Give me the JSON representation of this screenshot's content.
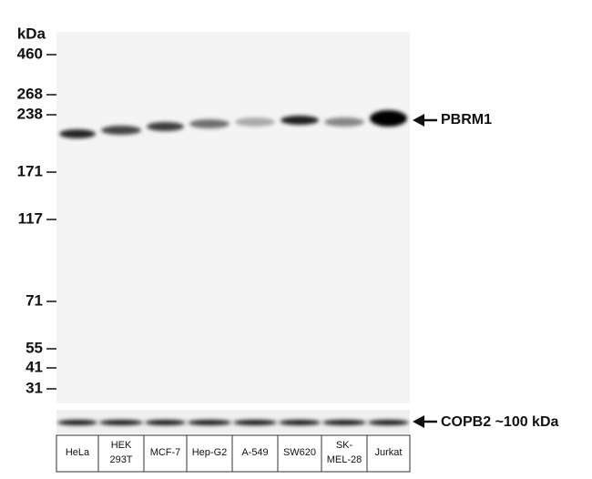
{
  "ladder": {
    "unit": "kDa",
    "markers": [
      "460",
      "268",
      "238",
      "171",
      "117",
      "71",
      "55",
      "41",
      "31"
    ]
  },
  "lanes": [
    [
      "HeLa"
    ],
    [
      "HEK",
      "293T"
    ],
    [
      "MCF-7"
    ],
    [
      "Hep-G2"
    ],
    [
      "A-549"
    ],
    [
      "SW620"
    ],
    [
      "SK-",
      "MEL-28"
    ],
    [
      "Jurkat"
    ]
  ],
  "annotations": {
    "target": "PBRM1",
    "control": "COPB2 ~100 kDa"
  }
}
